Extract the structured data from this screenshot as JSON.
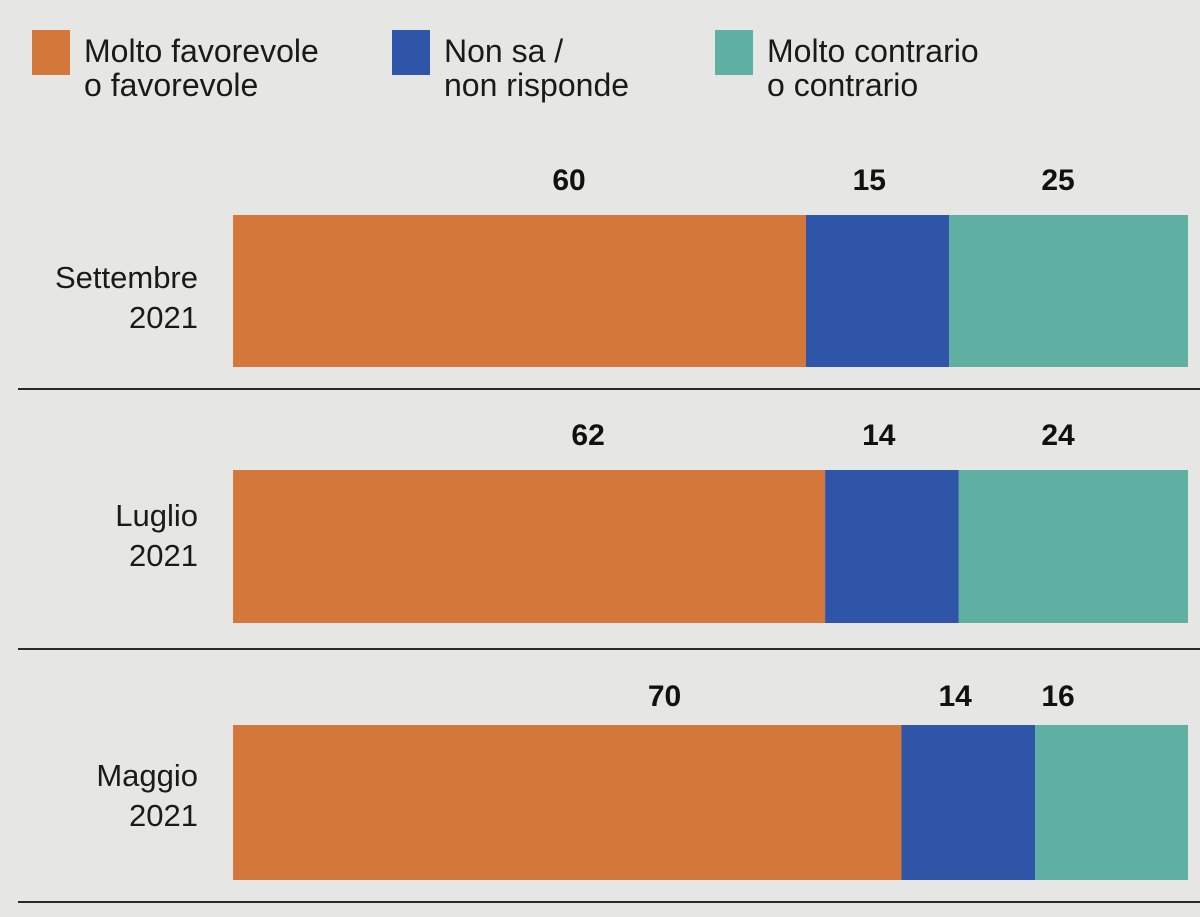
{
  "chart_data": {
    "type": "bar",
    "orientation": "horizontal",
    "stacked": true,
    "categories": [
      [
        "Settembre",
        "2021"
      ],
      [
        "Luglio",
        "2021"
      ],
      [
        "Maggio",
        "2021"
      ]
    ],
    "series": [
      {
        "name": [
          "Molto favorevole",
          "o favorevole"
        ],
        "color": "#d4773a",
        "values": [
          60,
          62,
          70
        ]
      },
      {
        "name": [
          "Non sa /",
          "non risponde"
        ],
        "color": "#2f55a8",
        "values": [
          15,
          14,
          14
        ]
      },
      {
        "name": [
          "Molto contrario",
          "o contrario"
        ],
        "color": "#5fb0a3",
        "values": [
          25,
          24,
          16
        ]
      }
    ],
    "xlim": [
      0,
      100
    ],
    "legend": "top",
    "grid": false
  }
}
